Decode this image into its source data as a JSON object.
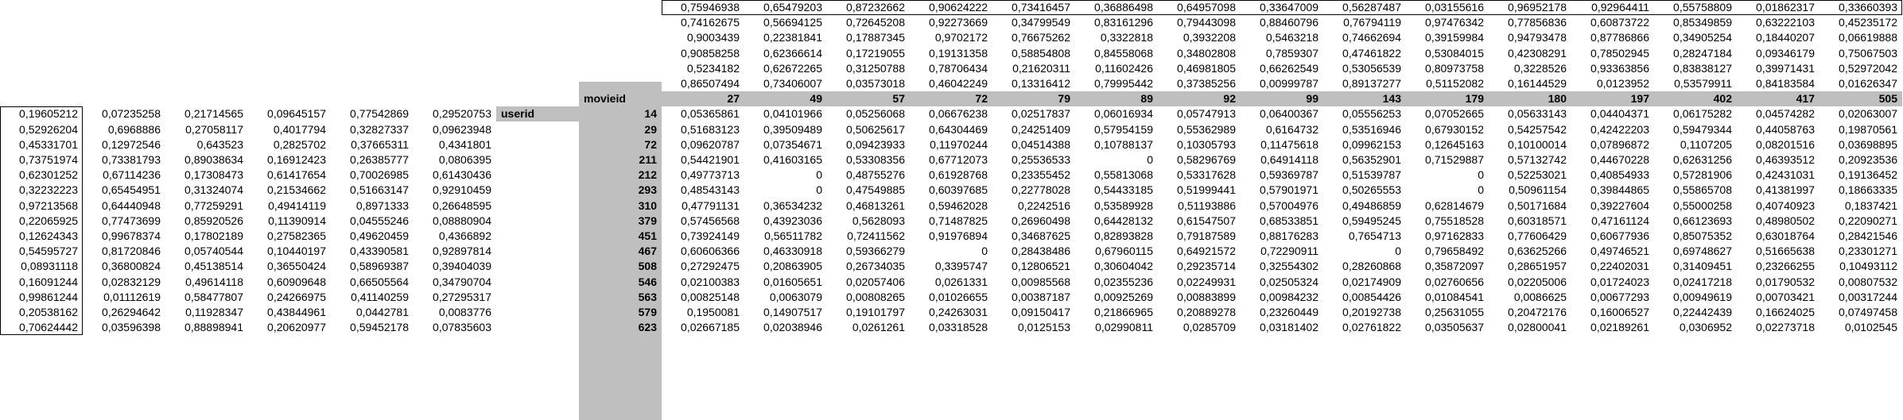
{
  "headers": {
    "movieid_label": "movieid",
    "userid_label": "userid",
    "movieids": [
      "27",
      "49",
      "57",
      "72",
      "79",
      "89",
      "92",
      "99",
      "143",
      "179",
      "180",
      "197",
      "402",
      "417",
      "505"
    ],
    "userids": [
      "14",
      "29",
      "72",
      "211",
      "212",
      "293",
      "310",
      "379",
      "451",
      "467",
      "508",
      "546",
      "563",
      "579",
      "623"
    ]
  },
  "movie_factors": [
    [
      "0,75946938",
      "0,65479203",
      "0,87232662",
      "0,90624222",
      "0,73416457",
      "0,36886498",
      "0,64957098",
      "0,33647009",
      "0,56287487",
      "0,03155616",
      "0,96952178",
      "0,92964411",
      "0,55758809",
      "0,01862317",
      "0,33660393"
    ],
    [
      "0,74162675",
      "0,56694125",
      "0,72645208",
      "0,92273669",
      "0,34799549",
      "0,83161296",
      "0,79443098",
      "0,88460796",
      "0,76794119",
      "0,97476342",
      "0,77856836",
      "0,60873722",
      "0,85349859",
      "0,63222103",
      "0,45235172"
    ],
    [
      "0,9003439",
      "0,22381841",
      "0,17887345",
      "0,9702172",
      "0,76675262",
      "0,3322818",
      "0,3932208",
      "0,5463218",
      "0,74662694",
      "0,39159984",
      "0,94793478",
      "0,87786866",
      "0,34905254",
      "0,18440207",
      "0,06619888"
    ],
    [
      "0,90858258",
      "0,62366614",
      "0,17219055",
      "0,19131358",
      "0,58854808",
      "0,84558068",
      "0,34802808",
      "0,7859307",
      "0,47461822",
      "0,53084015",
      "0,42308291",
      "0,78502945",
      "0,28247184",
      "0,09346179",
      "0,75067503"
    ],
    [
      "0,5234182",
      "0,62672265",
      "0,31250788",
      "0,78706434",
      "0,21620311",
      "0,11602426",
      "0,46981805",
      "0,66262549",
      "0,53056539",
      "0,80973758",
      "0,3228526",
      "0,93363856",
      "0,83838127",
      "0,39971431",
      "0,52972042"
    ],
    [
      "0,86507494",
      "0,73406007",
      "0,03573018",
      "0,46042249",
      "0,13316412",
      "0,79995442",
      "0,37385256",
      "0,00999787",
      "0,89137277",
      "0,51152082",
      "0,16144529",
      "0,0123952",
      "0,53579911",
      "0,84183584",
      "0,01626347"
    ]
  ],
  "user_factors": [
    [
      "0,19605212",
      "0,07235258",
      "0,21714565",
      "0,09645157",
      "0,77542869",
      "0,29520753"
    ],
    [
      "0,52926204",
      "0,6968886",
      "0,27058117",
      "0,4017794",
      "0,32827337",
      "0,09623948"
    ],
    [
      "0,45331701",
      "0,12972546",
      "0,643523",
      "0,2825702",
      "0,37665311",
      "0,4341801"
    ],
    [
      "0,73751974",
      "0,73381793",
      "0,89038634",
      "0,16912423",
      "0,26385777",
      "0,0806395"
    ],
    [
      "0,62301252",
      "0,67114236",
      "0,17308473",
      "0,61417654",
      "0,70026985",
      "0,61430436"
    ],
    [
      "0,32232223",
      "0,65454951",
      "0,31324074",
      "0,21534662",
      "0,51663147",
      "0,92910459"
    ],
    [
      "0,97213568",
      "0,64440948",
      "0,77259291",
      "0,49414119",
      "0,8971333",
      "0,26648595"
    ],
    [
      "0,22065925",
      "0,77473699",
      "0,85920526",
      "0,11390914",
      "0,04555246",
      "0,08880904"
    ],
    [
      "0,12624343",
      "0,99678374",
      "0,17802189",
      "0,27582365",
      "0,49620459",
      "0,4366892"
    ],
    [
      "0,54595727",
      "0,81720846",
      "0,05740544",
      "0,10440197",
      "0,43390581",
      "0,92897814"
    ],
    [
      "0,08931118",
      "0,36800824",
      "0,45138514",
      "0,36550424",
      "0,58969387",
      "0,39404039"
    ],
    [
      "0,16091244",
      "0,02832129",
      "0,49614118",
      "0,60909648",
      "0,66505564",
      "0,34790704"
    ],
    [
      "0,99861244",
      "0,01112619",
      "0,58477807",
      "0,24266975",
      "0,41140259",
      "0,27295317"
    ],
    [
      "0,20538162",
      "0,26294642",
      "0,11928347",
      "0,43844961",
      "0,0442781",
      "0,0083776"
    ],
    [
      "0,70624442",
      "0,03596398",
      "0,88898941",
      "0,20620977",
      "0,59452178",
      "0,07835603"
    ]
  ],
  "predictions": [
    [
      "0,05365861",
      "0,04101966",
      "0,05256068",
      "0,06676238",
      "0,02517837",
      "0,06016934",
      "0,05747913",
      "0,06400367",
      "0,05556253",
      "0,07052665",
      "0,05633143",
      "0,04404371",
      "0,06175282",
      "0,04574282",
      "0,02063007"
    ],
    [
      "0,51683123",
      "0,39509489",
      "0,50625617",
      "0,64304469",
      "0,24251409",
      "0,57954159",
      "0,55362989",
      "0,6164732",
      "0,53516946",
      "0,67930152",
      "0,54257542",
      "0,42422203",
      "0,59479344",
      "0,44058763",
      "0,19870561"
    ],
    [
      "0,09620787",
      "0,07354671",
      "0,09423933",
      "0,11970244",
      "0,04514388",
      "0,10788137",
      "0,10305793",
      "0,11475618",
      "0,09962153",
      "0,12645163",
      "0,10100014",
      "0,07896872",
      "0,1107205",
      "0,08201516",
      "0,03698895"
    ],
    [
      "0,54421901",
      "0,41603165",
      "0,53308356",
      "0,67712073",
      "0,25536533",
      "0",
      "0,58296769",
      "0,64914118",
      "0,56352901",
      "0,71529887",
      "0,57132742",
      "0,44670228",
      "0,62631256",
      "0,46393512",
      "0,20923536"
    ],
    [
      "0,49773713",
      "0",
      "0,48755276",
      "0,61928768",
      "0,23355452",
      "0,55813068",
      "0,53317628",
      "0,59369787",
      "0,51539787",
      "0",
      "0,52253021",
      "0,40854933",
      "0,57281906",
      "0,42431031",
      "0,19136452"
    ],
    [
      "0,48543143",
      "0",
      "0,47549885",
      "0,60397685",
      "0,22778028",
      "0,54433185",
      "0,51999441",
      "0,57901971",
      "0,50265553",
      "0",
      "0,50961154",
      "0,39844865",
      "0,55865708",
      "0,41381997",
      "0,18663335"
    ],
    [
      "0,47791131",
      "0,36534232",
      "0,46813261",
      "0,59462028",
      "0,2242516",
      "0,53589928",
      "0,51193886",
      "0,57004976",
      "0,49486859",
      "0,62814679",
      "0,50171684",
      "0,39227604",
      "0,55000258",
      "0,40740923",
      "0,1837421"
    ],
    [
      "0,57456568",
      "0,43923036",
      "0,5628093",
      "0,71487825",
      "0,26960498",
      "0,64428132",
      "0,61547507",
      "0,68533851",
      "0,59495245",
      "0,75518528",
      "0,60318571",
      "0,47161124",
      "0,66123693",
      "0,48980502",
      "0,22090271"
    ],
    [
      "0,73924149",
      "0,56511782",
      "0,72411562",
      "0,91976894",
      "0,34687625",
      "0,82893828",
      "0,79187589",
      "0,88176283",
      "0,7654713",
      "0,97162833",
      "0,77606429",
      "0,60677936",
      "0,85075352",
      "0,63018764",
      "0,28421546"
    ],
    [
      "0,60606366",
      "0,46330918",
      "0,59366279",
      "0",
      "0,28438486",
      "0,67960115",
      "0,64921572",
      "0,72290911",
      "0",
      "0,79658492",
      "0,63625266",
      "0,49746521",
      "0,69748627",
      "0,51665638",
      "0,23301271"
    ],
    [
      "0,27292475",
      "0,20863905",
      "0,26734035",
      "0,3395747",
      "0,12806521",
      "0,30604042",
      "0,29235714",
      "0,32554302",
      "0,28260868",
      "0,35872097",
      "0,28651957",
      "0,22402031",
      "0,31409451",
      "0,23266255",
      "0,10493112"
    ],
    [
      "0,02100383",
      "0,01605651",
      "0,02057406",
      "0,0261331",
      "0,00985568",
      "0,02355236",
      "0,02249931",
      "0,02505324",
      "0,02174909",
      "0,02760656",
      "0,02205006",
      "0,01724023",
      "0,02417218",
      "0,01790532",
      "0,00807532"
    ],
    [
      "0,00825148",
      "0,0063079",
      "0,00808265",
      "0,01026655",
      "0,00387187",
      "0,00925269",
      "0,00883899",
      "0,00984232",
      "0,00854426",
      "0,01084541",
      "0,0086625",
      "0,00677293",
      "0,00949619",
      "0,00703421",
      "0,00317244"
    ],
    [
      "0,1950081",
      "0,14907517",
      "0,19101797",
      "0,24263031",
      "0,09150417",
      "0,21866965",
      "0,20889278",
      "0,23260449",
      "0,20192738",
      "0,25631055",
      "0,20472176",
      "0,16006527",
      "0,22442439",
      "0,16624025",
      "0,07497458"
    ],
    [
      "0,02667185",
      "0,02038946",
      "0,0261261",
      "0,03318528",
      "0,0125153",
      "0,02990811",
      "0,0285709",
      "0,03181402",
      "0,02761822",
      "0,03505637",
      "0,02800041",
      "0,02189261",
      "0,0306952",
      "0,02273718",
      "0,0102545"
    ]
  ]
}
